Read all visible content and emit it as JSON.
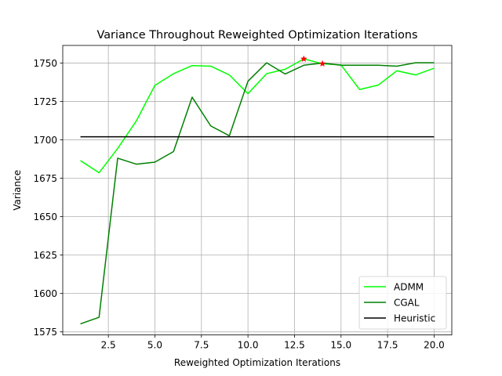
{
  "chart_data": {
    "type": "line",
    "title": "Variance Throughout Reweighted Optimization Iterations",
    "xlabel": "Reweighted Optimization Iterations",
    "ylabel": "Variance",
    "xlim": [
      0.05,
      20.95
    ],
    "ylim": [
      1573,
      1761.5
    ],
    "xticks": [
      2.5,
      5.0,
      7.5,
      10.0,
      12.5,
      15.0,
      17.5,
      20.0
    ],
    "xtick_labels": [
      "2.5",
      "5.0",
      "7.5",
      "10.0",
      "12.5",
      "15.0",
      "17.5",
      "20.0"
    ],
    "yticks": [
      1575,
      1600,
      1625,
      1650,
      1675,
      1700,
      1725,
      1750
    ],
    "ytick_labels": [
      "1575",
      "1600",
      "1625",
      "1650",
      "1675",
      "1700",
      "1725",
      "1750"
    ],
    "grid": true,
    "legend_position": "lower right",
    "x": [
      1,
      2,
      3,
      4,
      5,
      6,
      7,
      8,
      9,
      10,
      11,
      12,
      13,
      14,
      15,
      16,
      17,
      18,
      19,
      20
    ],
    "series": [
      {
        "name": "ADMM",
        "color": "#00ff00",
        "values": [
          1686.5,
          1678.6,
          1694.4,
          1712.3,
          1735.5,
          1743.1,
          1748.4,
          1748.0,
          1742.3,
          1730.1,
          1743.1,
          1746.0,
          1752.7,
          1749.6,
          1748.8,
          1732.8,
          1735.7,
          1745.0,
          1742.3,
          1746.7
        ]
      },
      {
        "name": "CGAL",
        "color": "#008000",
        "values": [
          1580.2,
          1584.5,
          1688.1,
          1684.2,
          1685.5,
          1692.4,
          1727.8,
          1709.1,
          1702.7,
          1738.2,
          1750.2,
          1742.9,
          1748.6,
          1750.0,
          1748.6,
          1748.6,
          1748.6,
          1748.0,
          1750.2,
          1750.2
        ]
      },
      {
        "name": "Heuristic",
        "color": "#000000",
        "values": [
          1702.0,
          1702.0,
          1702.0,
          1702.0,
          1702.0,
          1702.0,
          1702.0,
          1702.0,
          1702.0,
          1702.0,
          1702.0,
          1702.0,
          1702.0,
          1702.0,
          1702.0,
          1702.0,
          1702.0,
          1702.0,
          1702.0,
          1702.0
        ]
      }
    ],
    "markers": [
      {
        "x": 13,
        "y": 1752.7,
        "symbol": "star",
        "color": "#ff0000"
      },
      {
        "x": 14,
        "y": 1749.6,
        "symbol": "star",
        "color": "#ff0000"
      }
    ]
  }
}
